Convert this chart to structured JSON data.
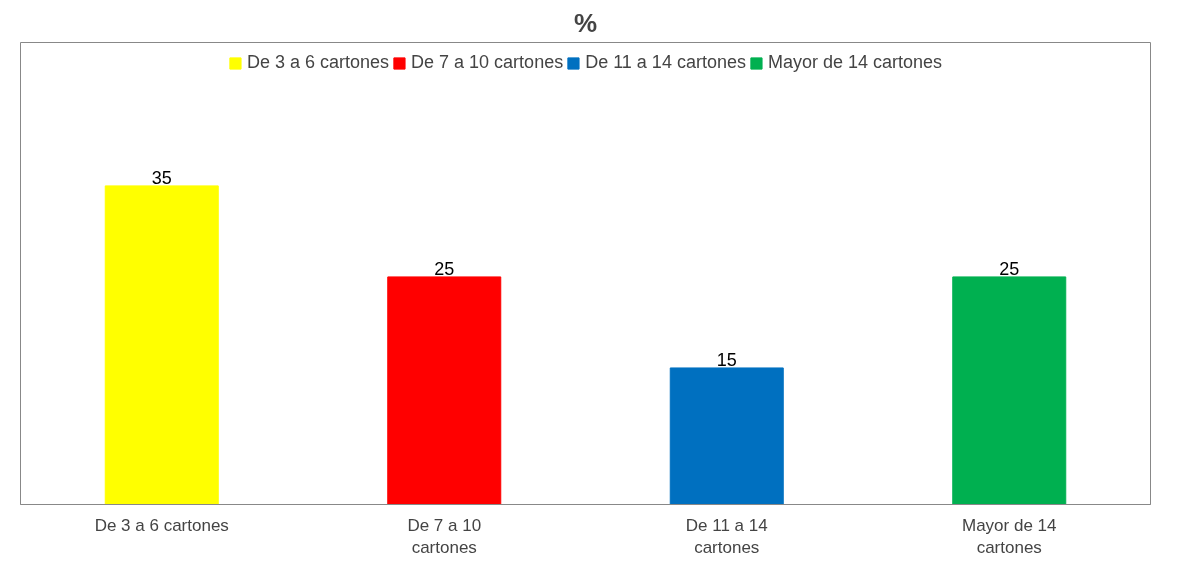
{
  "chart_data": {
    "type": "bar",
    "title": "%",
    "categories": [
      "De 3 a 6 cartones",
      "De 7 a 10 cartones",
      "De 11 a 14 cartones",
      "Mayor de 14 cartones"
    ],
    "series": [
      {
        "name": "De 3 a 6 cartones",
        "color": "#ffff00",
        "values": [
          35,
          null,
          null,
          null
        ]
      },
      {
        "name": "De 7 a 10 cartones",
        "color": "#ff0000",
        "values": [
          null,
          25,
          null,
          null
        ]
      },
      {
        "name": "De 11 a 14 cartones",
        "color": "#0070c0",
        "values": [
          null,
          null,
          15,
          null
        ]
      },
      {
        "name": "Mayor de 14 cartones",
        "color": "#00b050",
        "values": [
          null,
          null,
          null,
          25
        ]
      }
    ],
    "data_labels": true,
    "legend": "top",
    "grid": false
  }
}
